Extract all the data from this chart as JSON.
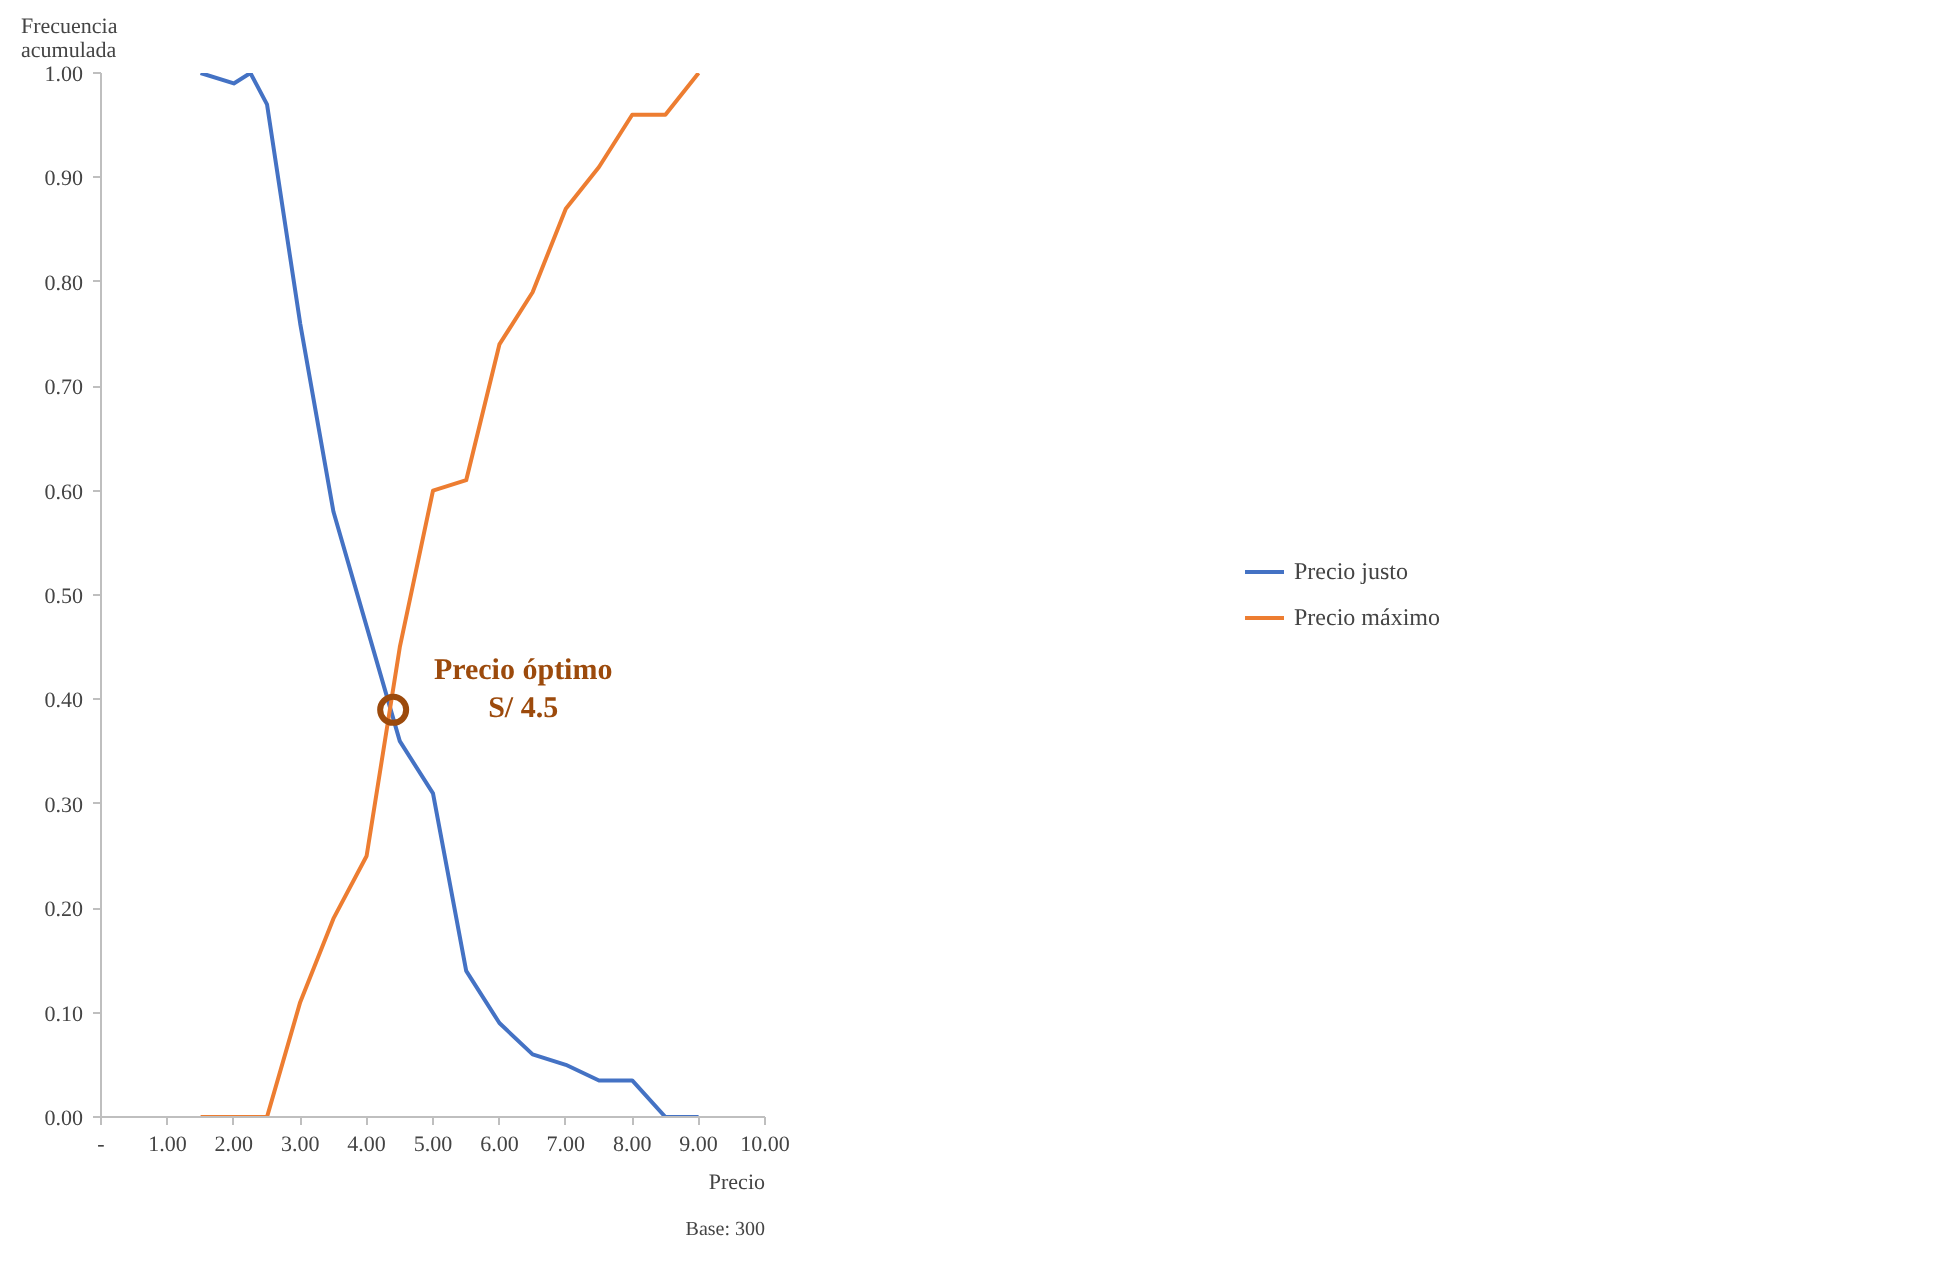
{
  "chart_data": {
    "type": "line",
    "ylabel": "Frecuencia\nacumulada",
    "xlabel": "Precio",
    "xlim": [
      0,
      10
    ],
    "xticks": [
      {
        "value": 0,
        "label": "-"
      },
      {
        "value": 1,
        "label": "1.00"
      },
      {
        "value": 2,
        "label": "2.00"
      },
      {
        "value": 3,
        "label": "3.00"
      },
      {
        "value": 4,
        "label": "4.00"
      },
      {
        "value": 5,
        "label": "5.00"
      },
      {
        "value": 6,
        "label": "6.00"
      },
      {
        "value": 7,
        "label": "7.00"
      },
      {
        "value": 8,
        "label": "8.00"
      },
      {
        "value": 9,
        "label": "9.00"
      },
      {
        "value": 10,
        "label": "10.00"
      }
    ],
    "ylim": [
      0,
      1
    ],
    "yticks": [
      {
        "value": 0,
        "label": "0.00"
      },
      {
        "value": 0.1,
        "label": "0.10"
      },
      {
        "value": 0.2,
        "label": "0.20"
      },
      {
        "value": 0.3,
        "label": "0.30"
      },
      {
        "value": 0.4,
        "label": "0.40"
      },
      {
        "value": 0.5,
        "label": "0.50"
      },
      {
        "value": 0.6,
        "label": "0.60"
      },
      {
        "value": 0.7,
        "label": "0.70"
      },
      {
        "value": 0.8,
        "label": "0.80"
      },
      {
        "value": 0.9,
        "label": "0.90"
      },
      {
        "value": 1,
        "label": "1.00"
      }
    ],
    "grid": false,
    "legend": "right",
    "line_style": "solid",
    "series": [
      {
        "name": "Precio justo",
        "color": "#4472c4",
        "x": [
          1.5,
          2.0,
          2.25,
          2.5,
          3.0,
          3.5,
          4.0,
          4.5,
          5.0,
          5.5,
          6.0,
          6.5,
          7.0,
          7.5,
          8.0,
          8.5,
          9.0
        ],
        "values": [
          1.0,
          0.99,
          1.0,
          0.97,
          0.76,
          0.58,
          0.47,
          0.36,
          0.31,
          0.14,
          0.09,
          0.06,
          0.05,
          0.035,
          0.035,
          0.0,
          0.0
        ]
      },
      {
        "name": "Precio máximo",
        "color": "#ed7d31",
        "x": [
          1.5,
          2.0,
          2.5,
          3.0,
          3.5,
          4.0,
          4.5,
          5.0,
          5.5,
          6.0,
          6.5,
          7.0,
          7.5,
          8.0,
          8.5,
          9.0
        ],
        "values": [
          0,
          0,
          0,
          0.11,
          0.19,
          0.25,
          0.45,
          0.6,
          0.61,
          0.74,
          0.79,
          0.87,
          0.91,
          0.96,
          0.96,
          1.0
        ]
      },
      {
        "type": "scatter",
        "color": "#9c4a0c",
        "x": [
          4.4
        ],
        "values": [
          0.39
        ]
      }
    ],
    "annotations": [
      "Precio óptimo\nS/ 4.5",
      "Base: 300"
    ]
  }
}
